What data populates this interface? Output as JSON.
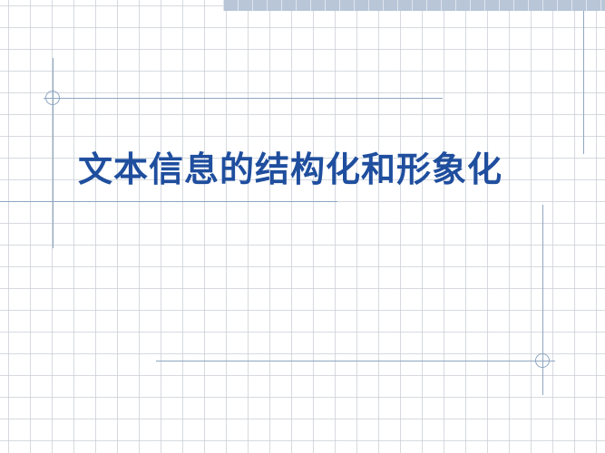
{
  "slide": {
    "title": "文本信息的结构化和形象化"
  },
  "colors": {
    "title": "#1f4e9e",
    "decor_lines": "#8ea6c2",
    "grid": "#c8cdd4",
    "top_bar": "#b8c6d8",
    "background": "#ffffff"
  }
}
